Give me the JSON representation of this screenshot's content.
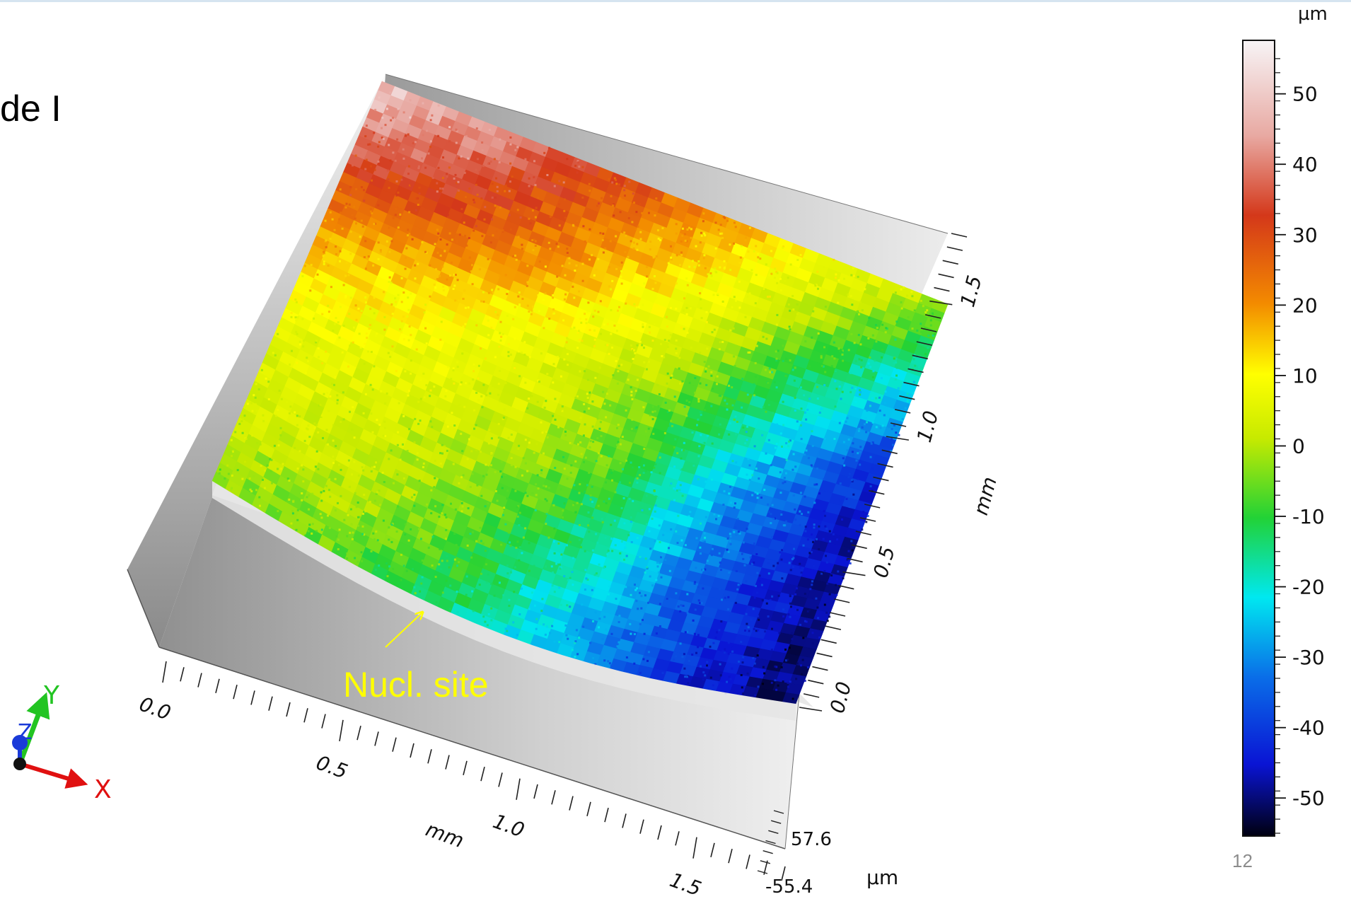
{
  "slide": {
    "title_fragment": "de I",
    "page_number": "12"
  },
  "chart_data": {
    "type": "surface-3d",
    "title": "",
    "x_axis": {
      "label": "mm",
      "ticks": [
        "0.0",
        "0.5",
        "1.0",
        "1.5"
      ],
      "range": [
        0.0,
        1.75
      ]
    },
    "y_axis": {
      "label": "mm",
      "ticks": [
        "0.0",
        "0.5",
        "1.0",
        "1.5"
      ],
      "range": [
        0.0,
        1.75
      ]
    },
    "z_axis": {
      "label": "µm",
      "ticks": [
        "57.6",
        "-55.4"
      ],
      "range": [
        -55.4,
        57.6
      ]
    },
    "colorbar": {
      "unit": "µm",
      "ticks": [
        "50",
        "40",
        "30",
        "20",
        "10",
        "0",
        "-10",
        "-20",
        "-30",
        "-40",
        "-50"
      ],
      "range": [
        -55.4,
        57.6
      ],
      "colors": [
        "#f7f4f6",
        "#e8a9a2",
        "#d4381a",
        "#f38a00",
        "#ffff00",
        "#c7ea00",
        "#22d236",
        "#00e8f0",
        "#0a6ee8",
        "#0a14d4",
        "#000010"
      ]
    },
    "surface_height_levels": [
      [
        52,
        44,
        35,
        22,
        10,
        0
      ],
      [
        36,
        32,
        22,
        10,
        -5,
        -22
      ],
      [
        20,
        14,
        8,
        -2,
        -20,
        -40
      ],
      [
        8,
        6,
        2,
        -10,
        -32,
        -48
      ],
      [
        4,
        2,
        -6,
        -20,
        -38,
        -50
      ],
      [
        -2,
        -6,
        -14,
        -28,
        -42,
        -52
      ]
    ],
    "annotations": [
      {
        "text": "Nucl. site",
        "color": "#ffff00"
      }
    ],
    "orientation_gizmo": {
      "x": "X",
      "y": "Y",
      "z": "Z"
    }
  }
}
